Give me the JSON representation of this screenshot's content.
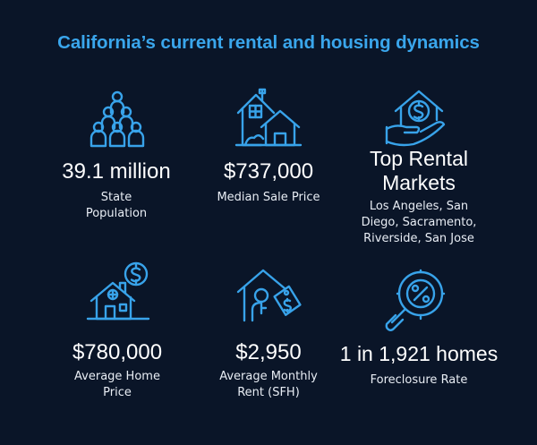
{
  "title": "California’s current rental and housing dynamics",
  "accent_color": "#3aa6ec",
  "background_color": "#0a1528",
  "stats": [
    {
      "icon": "population-pyramid-icon",
      "value": "39.1 million",
      "label_lines": [
        "State",
        "Population"
      ]
    },
    {
      "icon": "houses-icon",
      "value": "$737,000",
      "label_lines": [
        "Median Sale Price"
      ]
    },
    {
      "icon": "hand-house-dollar-icon",
      "value_lines": [
        "Top Rental",
        "Markets"
      ],
      "label_lines": [
        "Los Angeles, San",
        "Diego, Sacramento,",
        "Riverside, San Jose"
      ]
    },
    {
      "icon": "house-dollar-icon",
      "value": "$780,000",
      "label_lines": [
        "Average Home",
        "Price"
      ]
    },
    {
      "icon": "house-key-tag-icon",
      "value": "$2,950",
      "label_lines": [
        "Average Monthly",
        "Rent (SFH)"
      ]
    },
    {
      "icon": "magnifier-percent-icon",
      "value": "1 in 1,921 homes",
      "label_lines": [
        "Foreclosure Rate"
      ]
    }
  ]
}
